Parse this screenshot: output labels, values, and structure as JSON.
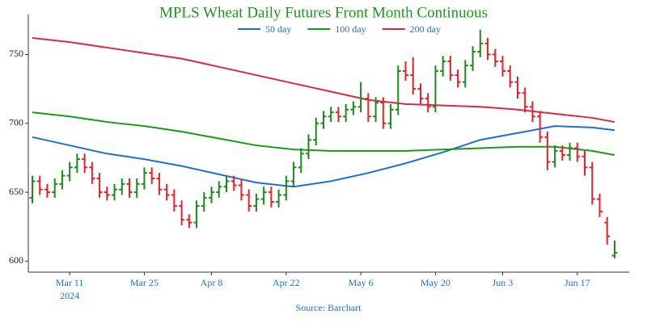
{
  "chart_data": {
    "type": "ohlc",
    "title": "MPLS Wheat Daily Futures Front Month Continuous",
    "source": "Source: Barchart",
    "year_label": "2024",
    "up_color": "#1a8a1a",
    "down_color": "#e8202a",
    "x": [
      "2024-03-04",
      "2024-03-05",
      "2024-03-06",
      "2024-03-07",
      "2024-03-08",
      "2024-03-11",
      "2024-03-12",
      "2024-03-13",
      "2024-03-14",
      "2024-03-15",
      "2024-03-18",
      "2024-03-19",
      "2024-03-20",
      "2024-03-21",
      "2024-03-22",
      "2024-03-25",
      "2024-03-26",
      "2024-03-27",
      "2024-03-28",
      "2024-04-01",
      "2024-04-02",
      "2024-04-03",
      "2024-04-04",
      "2024-04-05",
      "2024-04-08",
      "2024-04-09",
      "2024-04-10",
      "2024-04-11",
      "2024-04-12",
      "2024-04-15",
      "2024-04-16",
      "2024-04-17",
      "2024-04-18",
      "2024-04-19",
      "2024-04-22",
      "2024-04-23",
      "2024-04-24",
      "2024-04-25",
      "2024-04-26",
      "2024-04-29",
      "2024-04-30",
      "2024-05-01",
      "2024-05-02",
      "2024-05-03",
      "2024-05-06",
      "2024-05-07",
      "2024-05-08",
      "2024-05-09",
      "2024-05-10",
      "2024-05-13",
      "2024-05-14",
      "2024-05-15",
      "2024-05-16",
      "2024-05-17",
      "2024-05-20",
      "2024-05-21",
      "2024-05-22",
      "2024-05-23",
      "2024-05-24",
      "2024-05-28",
      "2024-05-29",
      "2024-05-30",
      "2024-05-31",
      "2024-06-03",
      "2024-06-04",
      "2024-06-05",
      "2024-06-06",
      "2024-06-07",
      "2024-06-10",
      "2024-06-11",
      "2024-06-12",
      "2024-06-13",
      "2024-06-14",
      "2024-06-17",
      "2024-06-18",
      "2024-06-20",
      "2024-06-21",
      "2024-06-24",
      "2024-06-25"
    ],
    "open": [
      646,
      658,
      652,
      650,
      656,
      662,
      668,
      674,
      668,
      660,
      650,
      648,
      652,
      656,
      650,
      656,
      664,
      660,
      652,
      648,
      640,
      630,
      628,
      640,
      646,
      650,
      654,
      658,
      655,
      648,
      640,
      645,
      650,
      643,
      648,
      658,
      668,
      678,
      688,
      700,
      705,
      708,
      705,
      710,
      712,
      718,
      705,
      715,
      700,
      710,
      738,
      735,
      725,
      718,
      712,
      738,
      745,
      735,
      730,
      742,
      752,
      758,
      750,
      745,
      738,
      730,
      722,
      712,
      705,
      690,
      672,
      680,
      677,
      682,
      676,
      668,
      645,
      628,
      604
    ],
    "high": [
      662,
      662,
      656,
      660,
      666,
      672,
      678,
      678,
      672,
      664,
      654,
      656,
      660,
      660,
      660,
      668,
      668,
      664,
      656,
      652,
      644,
      634,
      644,
      650,
      654,
      658,
      662,
      662,
      659,
      652,
      649,
      654,
      654,
      652,
      662,
      672,
      682,
      692,
      704,
      709,
      712,
      712,
      714,
      716,
      730,
      722,
      719,
      719,
      714,
      742,
      745,
      748,
      729,
      722,
      742,
      749,
      749,
      739,
      746,
      756,
      768,
      762,
      754,
      749,
      742,
      734,
      726,
      716,
      709,
      694,
      684,
      684,
      686,
      686,
      680,
      672,
      649,
      632,
      615
    ],
    "low": [
      642,
      648,
      646,
      646,
      652,
      658,
      664,
      664,
      656,
      646,
      644,
      644,
      648,
      646,
      646,
      652,
      656,
      648,
      644,
      636,
      626,
      624,
      624,
      636,
      642,
      646,
      650,
      651,
      644,
      636,
      636,
      641,
      639,
      639,
      644,
      654,
      664,
      674,
      684,
      696,
      701,
      701,
      701,
      706,
      708,
      701,
      701,
      696,
      696,
      706,
      731,
      721,
      714,
      708,
      708,
      734,
      731,
      726,
      726,
      738,
      748,
      746,
      741,
      734,
      726,
      718,
      708,
      701,
      686,
      666,
      668,
      673,
      673,
      672,
      662,
      641,
      632,
      612,
      602
    ],
    "close": [
      658,
      652,
      650,
      656,
      662,
      668,
      674,
      668,
      660,
      650,
      648,
      652,
      656,
      650,
      656,
      664,
      660,
      652,
      648,
      640,
      630,
      628,
      640,
      646,
      650,
      654,
      658,
      655,
      648,
      640,
      645,
      650,
      643,
      648,
      658,
      668,
      678,
      688,
      700,
      705,
      708,
      705,
      710,
      712,
      718,
      705,
      715,
      700,
      710,
      738,
      735,
      725,
      718,
      712,
      738,
      745,
      735,
      730,
      742,
      752,
      758,
      750,
      745,
      738,
      730,
      722,
      712,
      705,
      690,
      672,
      680,
      677,
      682,
      676,
      668,
      645,
      636,
      618,
      606
    ],
    "series": [
      {
        "name": "50 day",
        "color": "#1f6fd1",
        "x": [
          "2024-03-04",
          "2024-03-11",
          "2024-03-18",
          "2024-03-25",
          "2024-04-02",
          "2024-04-09",
          "2024-04-16",
          "2024-04-23",
          "2024-04-30",
          "2024-05-07",
          "2024-05-14",
          "2024-05-21",
          "2024-05-29",
          "2024-06-05",
          "2024-06-12",
          "2024-06-20",
          "2024-06-25"
        ],
        "values": [
          690,
          684,
          678,
          674,
          669,
          663,
          657,
          654,
          658,
          664,
          671,
          679,
          688,
          693,
          698,
          697,
          695
        ]
      },
      {
        "name": "100 day",
        "color": "#1a9a1a",
        "x": [
          "2024-03-04",
          "2024-03-11",
          "2024-03-18",
          "2024-03-25",
          "2024-04-02",
          "2024-04-09",
          "2024-04-16",
          "2024-04-23",
          "2024-04-30",
          "2024-05-07",
          "2024-05-14",
          "2024-05-21",
          "2024-05-29",
          "2024-06-05",
          "2024-06-12",
          "2024-06-20",
          "2024-06-25"
        ],
        "values": [
          708,
          705,
          701,
          698,
          694,
          689,
          684,
          681,
          680,
          680,
          680,
          681,
          682,
          683,
          683,
          680,
          677
        ]
      },
      {
        "name": "200 day",
        "color": "#dc2840",
        "x": [
          "2024-03-04",
          "2024-03-11",
          "2024-03-18",
          "2024-03-25",
          "2024-04-02",
          "2024-04-09",
          "2024-04-16",
          "2024-04-23",
          "2024-04-30",
          "2024-05-07",
          "2024-05-14",
          "2024-05-21",
          "2024-05-29",
          "2024-06-05",
          "2024-06-12",
          "2024-06-20",
          "2024-06-25"
        ],
        "values": [
          762,
          759,
          755,
          751,
          747,
          741,
          735,
          729,
          723,
          717,
          714,
          713,
          712,
          710,
          707,
          704,
          701
        ]
      }
    ],
    "ylim": [
      592,
      779
    ],
    "yticks": [
      600,
      650,
      700,
      750
    ],
    "xticks": [
      {
        "value": "2024-03-11",
        "label": "Mar 11"
      },
      {
        "value": "2024-03-25",
        "label": "Mar 25"
      },
      {
        "value": "2024-04-08",
        "label": "Apr 8"
      },
      {
        "value": "2024-04-22",
        "label": "Apr 22"
      },
      {
        "value": "2024-05-06",
        "label": "May 6"
      },
      {
        "value": "2024-05-20",
        "label": "May 20"
      },
      {
        "value": "2024-06-03",
        "label": "Jun 3"
      },
      {
        "value": "2024-06-17",
        "label": "Jun 17"
      }
    ],
    "legend": "top"
  }
}
